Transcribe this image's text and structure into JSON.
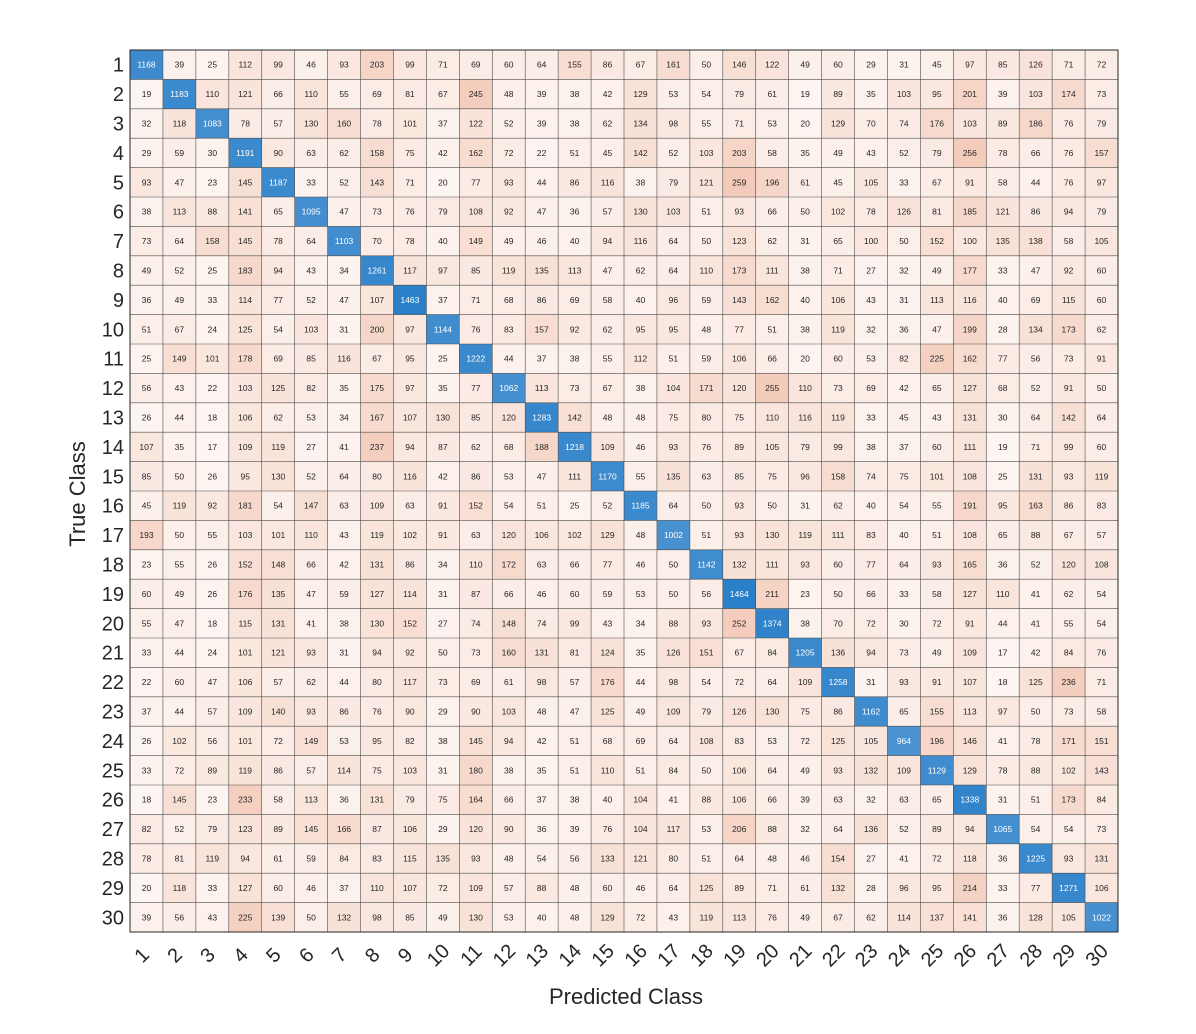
{
  "chart_data": {
    "type": "heatmap",
    "title": "",
    "xlabel": "Predicted Class",
    "ylabel": "True Class",
    "row_labels": [
      "1",
      "2",
      "3",
      "4",
      "5",
      "6",
      "7",
      "8",
      "9",
      "10",
      "11",
      "12",
      "13",
      "14",
      "15",
      "16",
      "17",
      "18",
      "19",
      "20",
      "21",
      "22",
      "23",
      "24",
      "25",
      "26",
      "27",
      "28",
      "29",
      "30"
    ],
    "col_labels": [
      "1",
      "2",
      "3",
      "4",
      "5",
      "6",
      "7",
      "8",
      "9",
      "10",
      "11",
      "12",
      "13",
      "14",
      "15",
      "16",
      "17",
      "18",
      "19",
      "20",
      "21",
      "22",
      "23",
      "24",
      "25",
      "26",
      "27",
      "28",
      "29",
      "30"
    ],
    "diagonal_color": "#2a7fc9",
    "offdiagonal_color": "#d95319",
    "matrix": [
      [
        1168,
        39,
        25,
        112,
        99,
        46,
        93,
        203,
        99,
        71,
        69,
        60,
        64,
        155,
        86,
        67,
        161,
        50,
        146,
        122,
        49,
        60,
        29,
        31,
        45,
        97,
        85,
        126,
        71,
        72
      ],
      [
        19,
        1183,
        110,
        121,
        66,
        110,
        55,
        69,
        81,
        67,
        245,
        48,
        39,
        38,
        42,
        129,
        53,
        54,
        79,
        61,
        19,
        89,
        35,
        103,
        95,
        201,
        39,
        103,
        174,
        73
      ],
      [
        32,
        118,
        1083,
        78,
        57,
        130,
        160,
        78,
        101,
        37,
        122,
        52,
        39,
        38,
        62,
        134,
        98,
        55,
        71,
        53,
        20,
        129,
        70,
        74,
        176,
        103,
        89,
        186,
        76,
        79
      ],
      [
        29,
        59,
        30,
        1191,
        90,
        63,
        62,
        158,
        75,
        42,
        162,
        72,
        22,
        51,
        45,
        142,
        52,
        103,
        203,
        58,
        35,
        49,
        43,
        52,
        79,
        256,
        78,
        66,
        76,
        157
      ],
      [
        93,
        47,
        23,
        145,
        1187,
        33,
        52,
        143,
        71,
        20,
        77,
        93,
        44,
        86,
        116,
        38,
        79,
        121,
        259,
        196,
        61,
        45,
        105,
        33,
        67,
        91,
        58,
        44,
        76,
        97
      ],
      [
        38,
        113,
        88,
        141,
        65,
        1095,
        47,
        73,
        76,
        79,
        108,
        92,
        47,
        36,
        57,
        130,
        103,
        51,
        93,
        66,
        50,
        102,
        78,
        126,
        81,
        185,
        121,
        86,
        94,
        79
      ],
      [
        73,
        64,
        158,
        145,
        78,
        64,
        1103,
        70,
        78,
        40,
        149,
        49,
        46,
        40,
        94,
        116,
        64,
        50,
        123,
        62,
        31,
        65,
        100,
        50,
        152,
        100,
        135,
        138,
        58,
        105
      ],
      [
        49,
        52,
        25,
        183,
        94,
        43,
        34,
        1261,
        117,
        97,
        85,
        119,
        135,
        113,
        47,
        62,
        64,
        110,
        173,
        111,
        38,
        71,
        27,
        32,
        49,
        177,
        33,
        47,
        92,
        60
      ],
      [
        36,
        49,
        33,
        114,
        77,
        52,
        47,
        107,
        1463,
        37,
        71,
        68,
        86,
        69,
        58,
        40,
        96,
        59,
        143,
        162,
        40,
        106,
        43,
        31,
        113,
        116,
        40,
        69,
        115,
        60
      ],
      [
        51,
        67,
        24,
        125,
        54,
        103,
        31,
        200,
        97,
        1144,
        76,
        83,
        157,
        92,
        62,
        95,
        95,
        48,
        77,
        51,
        38,
        119,
        32,
        36,
        47,
        199,
        28,
        134,
        173,
        62
      ],
      [
        25,
        149,
        101,
        178,
        69,
        85,
        116,
        67,
        95,
        25,
        1222,
        44,
        37,
        38,
        55,
        112,
        51,
        59,
        106,
        66,
        20,
        60,
        53,
        82,
        225,
        162,
        77,
        56,
        73,
        91
      ],
      [
        56,
        43,
        22,
        103,
        125,
        82,
        35,
        175,
        97,
        35,
        77,
        1062,
        113,
        73,
        67,
        38,
        104,
        171,
        120,
        255,
        110,
        73,
        69,
        42,
        65,
        127,
        68,
        52,
        91,
        50
      ],
      [
        26,
        44,
        18,
        106,
        62,
        53,
        34,
        167,
        107,
        130,
        85,
        120,
        1283,
        142,
        48,
        48,
        75,
        80,
        75,
        110,
        116,
        119,
        33,
        45,
        43,
        131,
        30,
        64,
        142,
        64
      ],
      [
        107,
        35,
        17,
        109,
        119,
        27,
        41,
        237,
        94,
        87,
        62,
        68,
        188,
        1218,
        109,
        46,
        93,
        76,
        89,
        105,
        79,
        99,
        38,
        37,
        60,
        111,
        19,
        71,
        99,
        60
      ],
      [
        85,
        50,
        26,
        95,
        130,
        52,
        64,
        80,
        116,
        42,
        86,
        53,
        47,
        111,
        1170,
        55,
        135,
        63,
        85,
        75,
        96,
        158,
        74,
        75,
        101,
        108,
        25,
        131,
        93,
        119
      ],
      [
        45,
        119,
        92,
        181,
        54,
        147,
        63,
        109,
        63,
        91,
        152,
        54,
        51,
        25,
        52,
        1185,
        64,
        50,
        93,
        50,
        31,
        62,
        40,
        54,
        55,
        191,
        95,
        163,
        86,
        83
      ],
      [
        193,
        50,
        55,
        103,
        101,
        110,
        43,
        119,
        102,
        91,
        63,
        120,
        106,
        102,
        129,
        48,
        1002,
        51,
        93,
        130,
        119,
        111,
        83,
        40,
        51,
        108,
        65,
        88,
        67,
        57
      ],
      [
        23,
        55,
        26,
        152,
        148,
        66,
        42,
        131,
        86,
        34,
        110,
        172,
        63,
        66,
        77,
        46,
        50,
        1142,
        132,
        111,
        93,
        60,
        77,
        64,
        93,
        165,
        36,
        52,
        120,
        108
      ],
      [
        60,
        49,
        26,
        176,
        135,
        47,
        59,
        127,
        114,
        31,
        87,
        66,
        46,
        60,
        59,
        53,
        50,
        56,
        1464,
        211,
        23,
        50,
        66,
        33,
        58,
        127,
        110,
        41,
        62,
        54
      ],
      [
        55,
        47,
        18,
        115,
        131,
        41,
        38,
        130,
        152,
        27,
        74,
        148,
        74,
        99,
        43,
        34,
        88,
        93,
        252,
        1374,
        38,
        70,
        72,
        30,
        72,
        91,
        44,
        41,
        55,
        54
      ],
      [
        33,
        44,
        24,
        101,
        121,
        93,
        31,
        94,
        92,
        50,
        73,
        160,
        131,
        81,
        124,
        35,
        126,
        151,
        67,
        84,
        1205,
        136,
        94,
        73,
        49,
        109,
        17,
        42,
        84,
        76
      ],
      [
        22,
        60,
        47,
        106,
        57,
        62,
        44,
        80,
        117,
        73,
        69,
        61,
        98,
        57,
        176,
        44,
        98,
        54,
        72,
        64,
        109,
        1258,
        31,
        93,
        91,
        107,
        18,
        125,
        236,
        71
      ],
      [
        37,
        44,
        57,
        109,
        140,
        93,
        86,
        76,
        90,
        29,
        90,
        103,
        48,
        47,
        125,
        49,
        109,
        79,
        126,
        130,
        75,
        86,
        1162,
        65,
        155,
        113,
        97,
        50,
        73,
        58
      ],
      [
        26,
        102,
        56,
        101,
        72,
        149,
        53,
        95,
        82,
        38,
        145,
        94,
        42,
        51,
        68,
        69,
        64,
        108,
        83,
        53,
        72,
        125,
        105,
        964,
        196,
        146,
        41,
        78,
        171,
        151
      ],
      [
        33,
        72,
        89,
        119,
        86,
        57,
        114,
        75,
        103,
        31,
        180,
        38,
        35,
        51,
        110,
        51,
        84,
        50,
        106,
        64,
        49,
        93,
        132,
        109,
        1129,
        129,
        78,
        88,
        102,
        143
      ],
      [
        18,
        145,
        23,
        233,
        58,
        113,
        36,
        131,
        79,
        75,
        164,
        66,
        37,
        38,
        40,
        104,
        41,
        88,
        106,
        66,
        39,
        63,
        32,
        63,
        65,
        1338,
        31,
        51,
        173,
        84
      ],
      [
        82,
        52,
        79,
        123,
        89,
        145,
        166,
        87,
        106,
        29,
        120,
        90,
        36,
        39,
        76,
        104,
        117,
        53,
        206,
        88,
        32,
        64,
        136,
        52,
        89,
        94,
        1065,
        54,
        54,
        73
      ],
      [
        78,
        81,
        119,
        94,
        61,
        59,
        84,
        83,
        115,
        135,
        93,
        48,
        54,
        56,
        133,
        121,
        80,
        51,
        64,
        48,
        46,
        154,
        27,
        41,
        72,
        118,
        36,
        1225,
        93,
        131
      ],
      [
        20,
        118,
        33,
        127,
        60,
        46,
        37,
        110,
        107,
        72,
        109,
        57,
        88,
        48,
        60,
        46,
        64,
        125,
        89,
        71,
        61,
        132,
        28,
        96,
        95,
        214,
        33,
        77,
        1271,
        106
      ],
      [
        39,
        56,
        43,
        225,
        139,
        50,
        132,
        98,
        85,
        49,
        130,
        53,
        40,
        48,
        129,
        72,
        43,
        119,
        113,
        76,
        49,
        67,
        62,
        114,
        137,
        141,
        36,
        128,
        105,
        1022
      ]
    ]
  }
}
